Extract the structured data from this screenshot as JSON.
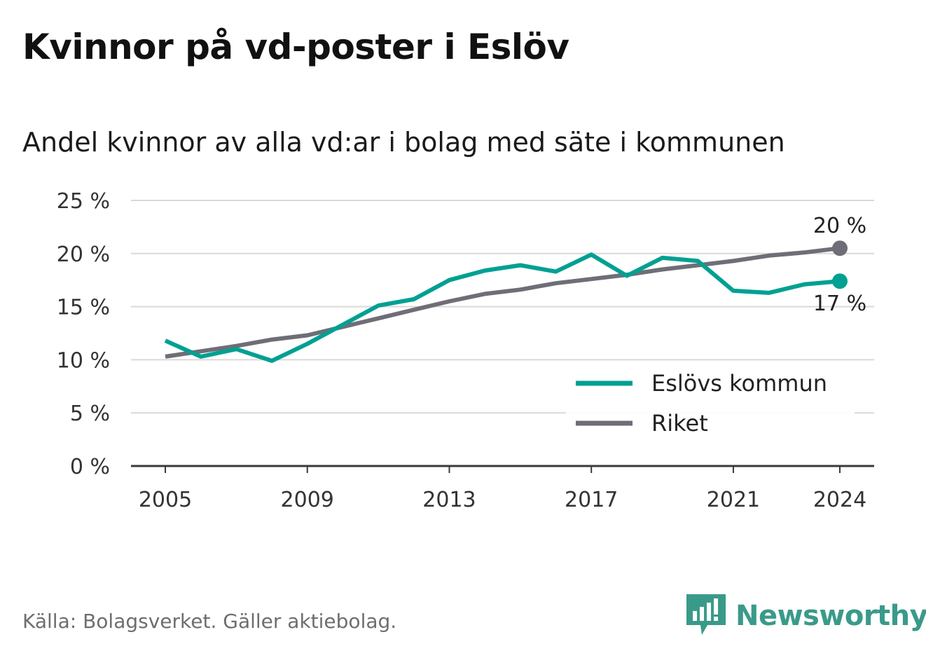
{
  "title": "Kvinnor på vd-poster i Eslöv",
  "subtitle": "Andel kvinnor av alla vd:ar i bolag med säte i kommunen",
  "source": "Källa: Bolagsverket. Gäller aktiebolag.",
  "brand": "Newsworthy",
  "colors": {
    "eslov": "#00a092",
    "riket": "#6f6e76",
    "grid": "#d9d9d9",
    "axis": "#3a3a3a",
    "brand": "#3a9a8a"
  },
  "chart_data": {
    "type": "line",
    "x": [
      2005,
      2006,
      2007,
      2008,
      2009,
      2010,
      2011,
      2012,
      2013,
      2014,
      2015,
      2016,
      2017,
      2018,
      2019,
      2020,
      2021,
      2022,
      2023,
      2024
    ],
    "series": [
      {
        "name": "Eslövs kommun",
        "color": "#00a092",
        "values": [
          11.8,
          10.3,
          11.0,
          9.9,
          11.5,
          13.3,
          15.1,
          15.7,
          17.5,
          18.4,
          18.9,
          18.3,
          19.9,
          17.9,
          19.6,
          19.3,
          16.5,
          16.3,
          17.1,
          17.4
        ],
        "end_label": "17 %"
      },
      {
        "name": "Riket",
        "color": "#6f6e76",
        "values": [
          10.3,
          10.8,
          11.3,
          11.9,
          12.3,
          13.1,
          13.9,
          14.7,
          15.5,
          16.2,
          16.6,
          17.2,
          17.6,
          18.0,
          18.5,
          18.9,
          19.3,
          19.8,
          20.1,
          20.5
        ],
        "end_label": "20 %"
      }
    ],
    "ylim": [
      0,
      25
    ],
    "yticks": [
      0,
      5,
      10,
      15,
      20,
      25
    ],
    "ytick_labels": [
      "0 %",
      "5 %",
      "10 %",
      "15 %",
      "20 %",
      "25 %"
    ],
    "xticks": [
      2005,
      2009,
      2013,
      2017,
      2021,
      2024
    ],
    "xtick_labels": [
      "2005",
      "2009",
      "2013",
      "2017",
      "2021",
      "2024"
    ],
    "grid": true,
    "legend": "bottom-right",
    "legend_labels": [
      "Eslövs kommun",
      "Riket"
    ]
  }
}
